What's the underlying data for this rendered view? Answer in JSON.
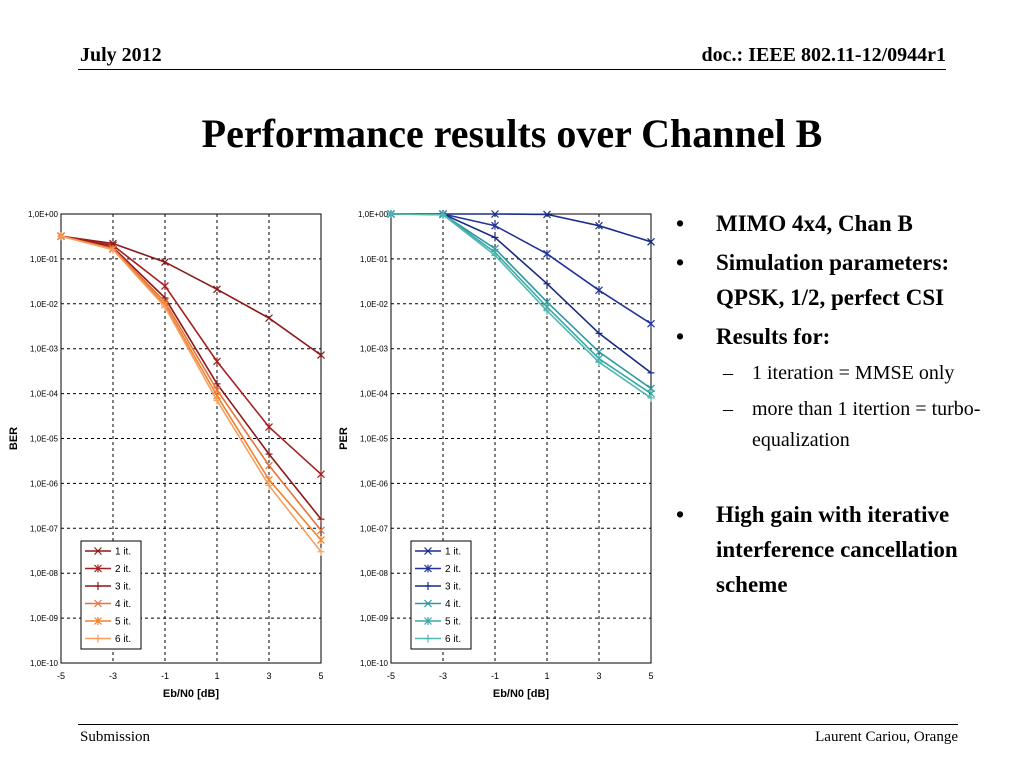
{
  "header": {
    "date": "July 2012",
    "doc": "doc.: IEEE 802.11-12/0944r1"
  },
  "title": "Performance results over Channel B",
  "bullets": [
    {
      "level": 1,
      "text": "MIMO 4x4, Chan B"
    },
    {
      "level": 1,
      "text": "Simulation parameters: QPSK, 1/2, perfect CSI"
    },
    {
      "level": 1,
      "text": "Results for:"
    },
    {
      "level": 2,
      "text": "1 iteration = MMSE only"
    },
    {
      "level": 2,
      "text": "more than 1 itertion = turbo-equalization"
    },
    {
      "level": 1,
      "text": "High gain with iterative interference cancellation scheme",
      "gap_before": true
    }
  ],
  "footer": {
    "left": "Submission",
    "right": "Laurent Cariou, Orange"
  },
  "chart_data": [
    {
      "type": "line",
      "xlabel": "Eb/N0 [dB]",
      "ylabel": "BER",
      "log_y": true,
      "xlim": [
        -5,
        5
      ],
      "ylim": [
        1e-10,
        1
      ],
      "grid": true,
      "legend_position": "bottom-left",
      "x_ticks": [
        "-5",
        "-3",
        "-1",
        "1",
        "3",
        "5"
      ],
      "y_ticks": [
        "1,0E-10",
        "1,0E-09",
        "1,0E-08",
        "1,0E-07",
        "1,0E-06",
        "1,0E-05",
        "1,0E-04",
        "1,0E-03",
        "1,0E-02",
        "1,0E-01",
        "1,0E+00"
      ],
      "x": [
        -5,
        -3,
        -1,
        1,
        3,
        5
      ],
      "series": [
        {
          "name": "1 it.",
          "color": "#8b1a1a",
          "marker": "x",
          "values": [
            0.32,
            0.22,
            0.085,
            0.021,
            0.0048,
            0.00072
          ]
        },
        {
          "name": "2 it.",
          "color": "#a52020",
          "marker": "star",
          "values": [
            0.32,
            0.2,
            0.025,
            0.00052,
            1.8e-05,
            1.6e-06
          ]
        },
        {
          "name": "3 it.",
          "color": "#8b1a1a",
          "marker": "plus",
          "values": [
            0.32,
            0.18,
            0.0135,
            0.000165,
            4.5e-06,
            1.6e-07
          ]
        },
        {
          "name": "4 it.",
          "color": "#e8743c",
          "marker": "x",
          "values": [
            0.32,
            0.17,
            0.011,
            0.00012,
            2.5e-06,
            9e-08
          ]
        },
        {
          "name": "5 it.",
          "color": "#f0822e",
          "marker": "star",
          "values": [
            0.32,
            0.165,
            0.0095,
            9e-05,
            1.2e-06,
            5.5e-08
          ]
        },
        {
          "name": "6 it.",
          "color": "#f5a060",
          "marker": "plus",
          "values": [
            0.32,
            0.16,
            0.0085,
            7e-05,
            9e-07,
            3e-08
          ]
        }
      ]
    },
    {
      "type": "line",
      "xlabel": "Eb/N0 [dB]",
      "ylabel": "PER",
      "log_y": true,
      "xlim": [
        -5,
        5
      ],
      "ylim": [
        1e-10,
        1
      ],
      "grid": true,
      "legend_position": "bottom-left",
      "x_ticks": [
        "-5",
        "-3",
        "-1",
        "1",
        "3",
        "5"
      ],
      "y_ticks": [
        "1,0E-10",
        "1,0E-09",
        "1,0E-08",
        "1,0E-07",
        "1,0E-06",
        "1,0E-05",
        "1,0E-04",
        "1,0E-03",
        "1,0E-02",
        "1,0E-01",
        "1,0E+00"
      ],
      "x": [
        -5,
        -3,
        -1,
        1,
        3,
        5
      ],
      "series": [
        {
          "name": "1 it.",
          "color": "#1c2e8c",
          "marker": "x",
          "values": [
            1,
            1,
            1,
            0.98,
            0.55,
            0.24
          ]
        },
        {
          "name": "2 it.",
          "color": "#223399",
          "marker": "star",
          "values": [
            1,
            1,
            0.55,
            0.13,
            0.02,
            0.0036
          ]
        },
        {
          "name": "3 it.",
          "color": "#1a2a80",
          "marker": "plus",
          "values": [
            1,
            1,
            0.3,
            0.028,
            0.0022,
            0.00029
          ]
        },
        {
          "name": "4 it.",
          "color": "#2a9aa0",
          "marker": "x",
          "values": [
            1,
            0.98,
            0.17,
            0.011,
            0.00085,
            0.00013
          ]
        },
        {
          "name": "5 it.",
          "color": "#38a8a8",
          "marker": "star",
          "values": [
            1,
            0.97,
            0.14,
            0.0085,
            0.0006,
            0.0001
          ]
        },
        {
          "name": "6 it.",
          "color": "#52b8b0",
          "marker": "plus",
          "values": [
            1,
            0.96,
            0.12,
            0.007,
            0.0005,
            8e-05
          ]
        }
      ]
    }
  ]
}
